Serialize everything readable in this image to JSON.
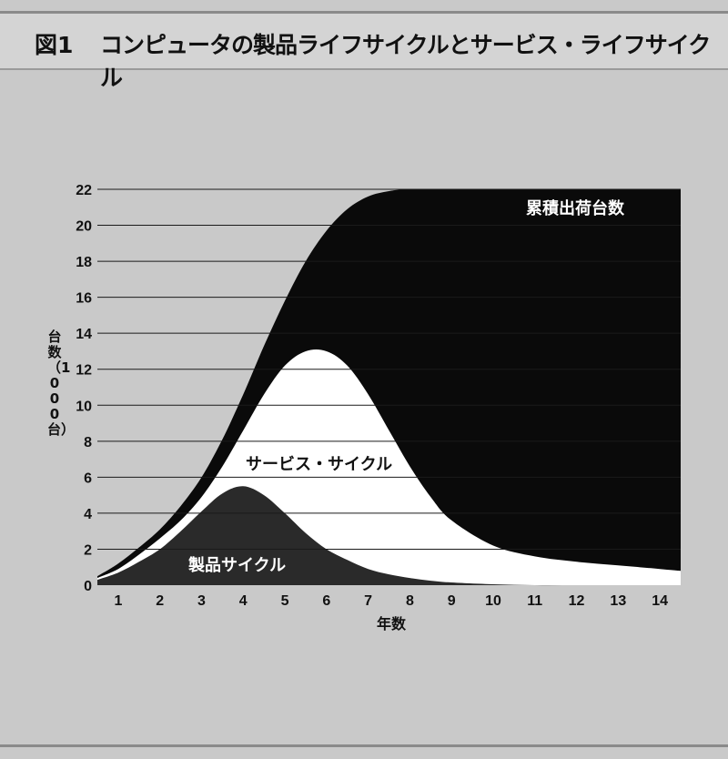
{
  "header": {
    "figure_label": "図1",
    "title": "コンピュータの製品ライフサイクルとサービス・ライフサイクル"
  },
  "colors": {
    "background": "#c9c9c9",
    "cumulative": "#0a0a0a",
    "service": "#ffffff",
    "product": "#2a2a2a",
    "grid": "#1a1a1a"
  },
  "chart_data": {
    "type": "area",
    "xlabel": "年数",
    "ylabel": "台数（1000台）",
    "x_ticks": [
      1,
      2,
      3,
      4,
      5,
      6,
      7,
      8,
      9,
      10,
      11,
      12,
      13,
      14
    ],
    "y_ticks": [
      0,
      2,
      4,
      6,
      8,
      10,
      12,
      14,
      16,
      18,
      20,
      22
    ],
    "xlim": [
      0.5,
      14.5
    ],
    "ylim": [
      0,
      22
    ],
    "grid": "horizontal",
    "series": [
      {
        "name": "累積出荷台数",
        "x": [
          0.5,
          1,
          1.5,
          2,
          2.5,
          3,
          3.5,
          4,
          4.5,
          5,
          5.5,
          6,
          6.5,
          7,
          7.5,
          8,
          9,
          10,
          11,
          12,
          13,
          14,
          14.5
        ],
        "values": [
          0.5,
          1.2,
          2.1,
          3.1,
          4.4,
          6.0,
          8.1,
          10.6,
          13.3,
          15.8,
          18.0,
          19.7,
          20.9,
          21.6,
          21.9,
          22,
          22,
          22,
          22,
          22,
          22,
          22,
          22
        ]
      },
      {
        "name": "サービス・サイクル",
        "x": [
          0.5,
          1,
          1.5,
          2,
          2.5,
          3,
          3.5,
          4,
          4.5,
          5,
          5.5,
          6,
          6.5,
          7,
          7.5,
          8,
          8.5,
          9,
          10,
          11,
          12,
          13,
          14,
          14.5
        ],
        "values": [
          0.4,
          0.9,
          1.7,
          2.6,
          3.6,
          4.9,
          6.6,
          8.6,
          10.6,
          12.2,
          13.0,
          13.0,
          12.2,
          10.6,
          8.6,
          6.6,
          4.9,
          3.6,
          2.2,
          1.6,
          1.3,
          1.1,
          0.9,
          0.8
        ]
      },
      {
        "name": "製品サイクル",
        "x": [
          0.5,
          1,
          1.5,
          2,
          2.5,
          3,
          3.5,
          4,
          4.5,
          5,
          5.5,
          6,
          6.5,
          7,
          7.5,
          8,
          8.5,
          9,
          10,
          11,
          12,
          13,
          14,
          14.5
        ],
        "values": [
          0.3,
          0.7,
          1.3,
          2.0,
          3.0,
          4.1,
          5.1,
          5.5,
          5.0,
          4.0,
          2.9,
          2.0,
          1.4,
          0.9,
          0.6,
          0.4,
          0.25,
          0.15,
          0.05,
          0,
          0,
          0,
          0,
          0
        ]
      }
    ],
    "annotations": {
      "cumulative_label": "累積出荷台数",
      "service_label": "サービス・サイクル",
      "product_label": "製品サイクル"
    }
  }
}
